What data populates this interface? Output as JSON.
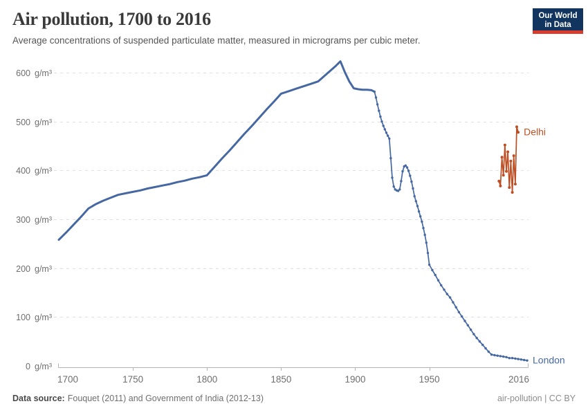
{
  "header": {
    "title": "Air pollution, 1700 to 2016",
    "subtitle": "Average concentrations of suspended particulate matter, measured in micrograms per cubic meter.",
    "logo": {
      "line1": "Our World",
      "line2": "in Data",
      "bg_color": "#12355F",
      "stripe_color": "#D93B2C",
      "text_color": "#FFFFFF"
    }
  },
  "chart_data": {
    "type": "line",
    "title": "Air pollution, 1700 to 2016",
    "xlabel": "",
    "ylabel": "g/m³",
    "unit": "g/m³",
    "xlim": [
      1700,
      2016
    ],
    "ylim": [
      0,
      600
    ],
    "x_ticks": [
      1700,
      1750,
      1800,
      1850,
      1900,
      1950,
      2016
    ],
    "y_ticks": [
      0,
      100,
      200,
      300,
      400,
      500,
      600
    ],
    "grid": "horizontal-dashed",
    "legend_position": "end-of-line",
    "grid_color": "#e0e0e0",
    "axis_color": "#b3b3b3",
    "tick_label_color": "#6e6e6e",
    "series": [
      {
        "name": "London",
        "color": "#4668A2",
        "thick_until": 1913,
        "markers_from": 1913,
        "points": [
          [
            1700,
            258
          ],
          [
            1705,
            273
          ],
          [
            1710,
            289
          ],
          [
            1715,
            305
          ],
          [
            1720,
            322
          ],
          [
            1725,
            331
          ],
          [
            1730,
            338
          ],
          [
            1735,
            344
          ],
          [
            1740,
            350
          ],
          [
            1745,
            353
          ],
          [
            1750,
            356
          ],
          [
            1755,
            359
          ],
          [
            1760,
            363
          ],
          [
            1765,
            366
          ],
          [
            1770,
            369
          ],
          [
            1775,
            372
          ],
          [
            1780,
            376
          ],
          [
            1785,
            379
          ],
          [
            1790,
            383
          ],
          [
            1795,
            386
          ],
          [
            1800,
            390
          ],
          [
            1805,
            407
          ],
          [
            1810,
            424
          ],
          [
            1815,
            440
          ],
          [
            1820,
            457
          ],
          [
            1825,
            474
          ],
          [
            1830,
            490
          ],
          [
            1835,
            507
          ],
          [
            1840,
            524
          ],
          [
            1845,
            540
          ],
          [
            1850,
            557
          ],
          [
            1855,
            562
          ],
          [
            1860,
            567
          ],
          [
            1865,
            572
          ],
          [
            1870,
            577
          ],
          [
            1875,
            582
          ],
          [
            1878,
            590
          ],
          [
            1881,
            598
          ],
          [
            1884,
            606
          ],
          [
            1887,
            614
          ],
          [
            1890,
            623
          ],
          [
            1893,
            601
          ],
          [
            1896,
            582
          ],
          [
            1899,
            568
          ],
          [
            1902,
            566
          ],
          [
            1905,
            565
          ],
          [
            1908,
            565
          ],
          [
            1911,
            564
          ],
          [
            1913,
            561
          ],
          [
            1914,
            549
          ],
          [
            1915,
            535
          ],
          [
            1916,
            522
          ],
          [
            1917,
            510
          ],
          [
            1918,
            500
          ],
          [
            1919,
            491
          ],
          [
            1920,
            484
          ],
          [
            1921,
            477
          ],
          [
            1922,
            471
          ],
          [
            1923,
            465
          ],
          [
            1924,
            425
          ],
          [
            1925,
            385
          ],
          [
            1926,
            367
          ],
          [
            1927,
            361
          ],
          [
            1928,
            359
          ],
          [
            1929,
            358
          ],
          [
            1930,
            361
          ],
          [
            1931,
            378
          ],
          [
            1932,
            398
          ],
          [
            1933,
            408
          ],
          [
            1934,
            410
          ],
          [
            1935,
            406
          ],
          [
            1936,
            399
          ],
          [
            1937,
            389
          ],
          [
            1938,
            377
          ],
          [
            1939,
            363
          ],
          [
            1940,
            347
          ],
          [
            1941,
            337
          ],
          [
            1942,
            327
          ],
          [
            1943,
            316
          ],
          [
            1944,
            306
          ],
          [
            1945,
            295
          ],
          [
            1946,
            282
          ],
          [
            1947,
            268
          ],
          [
            1948,
            252
          ],
          [
            1949,
            231
          ],
          [
            1950,
            207
          ],
          [
            1952,
            196
          ],
          [
            1954,
            186
          ],
          [
            1956,
            175
          ],
          [
            1958,
            165
          ],
          [
            1960,
            156
          ],
          [
            1962,
            147
          ],
          [
            1964,
            140
          ],
          [
            1966,
            130
          ],
          [
            1968,
            120
          ],
          [
            1970,
            110
          ],
          [
            1972,
            101
          ],
          [
            1974,
            92
          ],
          [
            1976,
            83
          ],
          [
            1978,
            74
          ],
          [
            1980,
            65
          ],
          [
            1982,
            57
          ],
          [
            1984,
            50
          ],
          [
            1986,
            43
          ],
          [
            1988,
            36
          ],
          [
            1990,
            29
          ],
          [
            1992,
            23
          ],
          [
            1994,
            22
          ],
          [
            1996,
            21
          ],
          [
            1998,
            20
          ],
          [
            2000,
            19
          ],
          [
            2002,
            18
          ],
          [
            2004,
            16
          ],
          [
            2006,
            16
          ],
          [
            2008,
            15
          ],
          [
            2010,
            14
          ],
          [
            2012,
            13
          ],
          [
            2014,
            12
          ],
          [
            2016,
            11
          ]
        ]
      },
      {
        "name": "Delhi",
        "color": "#BE4E24",
        "markers_from": 1997,
        "points": [
          [
            1997,
            378
          ],
          [
            1998,
            368
          ],
          [
            1999,
            427
          ],
          [
            2000,
            390
          ],
          [
            2001,
            452
          ],
          [
            2002,
            398
          ],
          [
            2003,
            438
          ],
          [
            2004,
            365
          ],
          [
            2005,
            419
          ],
          [
            2006,
            355
          ],
          [
            2007,
            430
          ],
          [
            2008,
            372
          ],
          [
            2009,
            489
          ],
          [
            2010,
            478
          ]
        ]
      }
    ]
  },
  "footer": {
    "source_label": "Data source:",
    "source_text": "Fouquet (2011) and Government of India (2012-13)",
    "license_text": "air-pollution | CC BY"
  }
}
